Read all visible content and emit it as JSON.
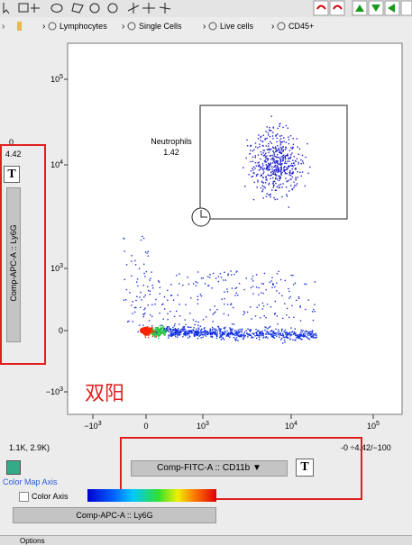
{
  "breadcrumb": [
    "Lymphocytes",
    "Single Cells",
    "Live cells",
    "CD45+"
  ],
  "plot": {
    "y_ticks": [
      {
        "base": "10",
        "exp": "5"
      },
      {
        "base": "10",
        "exp": "4"
      },
      {
        "base": "10",
        "exp": "3"
      },
      {
        "base": "0",
        "exp": ""
      },
      {
        "base": "−10",
        "exp": "3"
      }
    ],
    "x_ticks": [
      {
        "base": "−10",
        "exp": "3"
      },
      {
        "base": "0",
        "exp": ""
      },
      {
        "base": "10",
        "exp": "3"
      },
      {
        "base": "10",
        "exp": "4"
      },
      {
        "base": "10",
        "exp": "5"
      }
    ],
    "gate": {
      "name": "Neutrophils",
      "percent": "1.42"
    },
    "annotation": "双阳"
  },
  "left_panel": {
    "min": "0",
    "max": "4.42",
    "y_axis_param": "Comp-APC-A :: Ly6G",
    "t_button": "T"
  },
  "status": {
    "left": "1.1K, 2.9K)",
    "right": "-0 ÷4.42/−100"
  },
  "x_axis_param": "Comp-FITC-A :: CD11b",
  "t_button": "T",
  "color_map": {
    "title": "Color Map Axis",
    "checkbox": "Color Axis",
    "param": "Comp-APC-A :: Ly6G"
  },
  "footer": "Options"
}
